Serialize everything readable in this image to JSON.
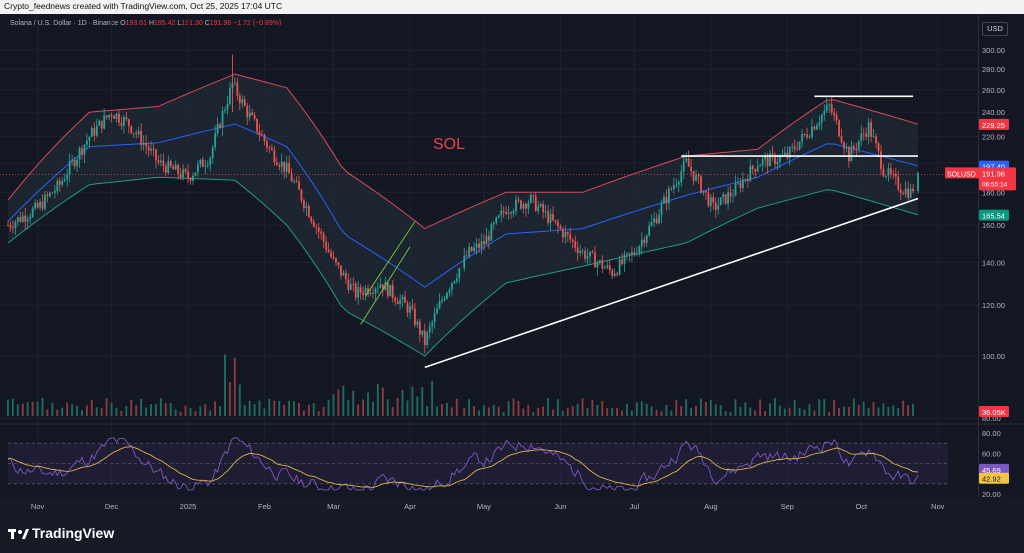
{
  "header": {
    "caption": "Crypto_feednews created with TradingView.com, Oct 25, 2025 17:04 UTC"
  },
  "legend": {
    "symbol": "Solana / U.S. Dollar · 1D · Binance",
    "o_label": "O",
    "o": "193.61",
    "h_label": "H",
    "h": "195.42",
    "l_label": "L",
    "l": "191.30",
    "c_label": "C",
    "c": "191.96",
    "change": "−1.72 (−0.89%)"
  },
  "currency_button": "USD",
  "annotation": "SOL",
  "logo_text": "TradingView",
  "colors": {
    "up": "#26a69a",
    "down": "#ef5350",
    "bb_upper": "#d84a5a",
    "bb_lower": "#1e9b8a",
    "bb_mid": "#2962ff",
    "rsi_line": "#7e57c2",
    "rsi_ma": "#d7b54a",
    "trendline": "#ffffff",
    "channel": "#66c13a",
    "background": "#131722"
  },
  "price_labels": [
    {
      "text": "SOLUSD",
      "color": "#f23645"
    },
    {
      "text": "191.96",
      "color": "#f23645"
    },
    {
      "text": "06:55:14",
      "color": "#f23645"
    }
  ],
  "badges": [
    {
      "text": "229.25",
      "color": "#f23645"
    },
    {
      "text": "197.40",
      "color": "#2962ff"
    },
    {
      "text": "165.54",
      "color": "#089981"
    },
    {
      "text": "36.05K",
      "color": "#f23645"
    },
    {
      "text": "45.69",
      "color": "#7e57c2"
    },
    {
      "text": "42.92",
      "color": "#f4c542"
    }
  ],
  "chart_data": [
    {
      "type": "line",
      "title": "Solana / U.S. Dollar · 1D · Binance",
      "price_scale": "log",
      "xlabel": "",
      "ylabel": "",
      "x_ticks": [
        "Nov",
        "Dec",
        "2025",
        "Feb",
        "Mar",
        "Apr",
        "May",
        "Jun",
        "Jul",
        "Aug",
        "Sep",
        "Oct",
        "Nov"
      ],
      "y_ticks": [
        80.0,
        100.0,
        120.0,
        140.0,
        160.0,
        180.0,
        200.0,
        220.0,
        240.0,
        260.0,
        280.0,
        300.0
      ],
      "ylim": [
        68,
        315
      ],
      "series": [
        {
          "name": "SOLUSD",
          "x": [
            "2024-10-20",
            "2024-11-01",
            "2024-11-10",
            "2024-11-22",
            "2024-12-01",
            "2024-12-08",
            "2024-12-20",
            "2025-01-01",
            "2025-01-10",
            "2025-01-19",
            "2025-01-25",
            "2025-02-03",
            "2025-02-10",
            "2025-02-20",
            "2025-03-01",
            "2025-03-10",
            "2025-03-20",
            "2025-04-01",
            "2025-04-07",
            "2025-04-15",
            "2025-04-25",
            "2025-05-01",
            "2025-05-10",
            "2025-05-20",
            "2025-05-30",
            "2025-06-10",
            "2025-06-22",
            "2025-07-01",
            "2025-07-10",
            "2025-07-22",
            "2025-08-02",
            "2025-08-10",
            "2025-08-20",
            "2025-09-01",
            "2025-09-10",
            "2025-09-18",
            "2025-09-26",
            "2025-10-04",
            "2025-10-10",
            "2025-10-17",
            "2025-10-21",
            "2025-10-25"
          ],
          "values": [
            160,
            170,
            185,
            220,
            240,
            230,
            200,
            190,
            205,
            265,
            240,
            210,
            195,
            165,
            140,
            125,
            130,
            118,
            105,
            125,
            145,
            150,
            170,
            175,
            160,
            145,
            135,
            145,
            165,
            200,
            170,
            180,
            200,
            205,
            225,
            245,
            205,
            228,
            195,
            183,
            180,
            191.96
          ]
        },
        {
          "name": "Upper band",
          "x": [
            "2024-10-20",
            "2024-11-22",
            "2024-12-20",
            "2025-01-20",
            "2025-02-10",
            "2025-03-05",
            "2025-04-07",
            "2025-05-10",
            "2025-06-10",
            "2025-07-22",
            "2025-08-20",
            "2025-09-18",
            "2025-10-25"
          ],
          "values": [
            175,
            240,
            245,
            275,
            262,
            195,
            158,
            180,
            180,
            205,
            210,
            252,
            229.25
          ]
        },
        {
          "name": "Lower band",
          "x": [
            "2024-10-20",
            "2024-11-22",
            "2024-12-20",
            "2025-01-20",
            "2025-02-10",
            "2025-03-05",
            "2025-04-07",
            "2025-05-10",
            "2025-06-10",
            "2025-07-22",
            "2025-08-20",
            "2025-09-18",
            "2025-10-25"
          ],
          "values": [
            150,
            185,
            190,
            188,
            160,
            118,
            100,
            130,
            138,
            150,
            170,
            182,
            165.54
          ]
        },
        {
          "name": "Basis",
          "x": [
            "2024-10-20",
            "2024-11-22",
            "2024-12-20",
            "2025-01-20",
            "2025-02-10",
            "2025-03-05",
            "2025-04-07",
            "2025-05-10",
            "2025-06-10",
            "2025-07-22",
            "2025-08-20",
            "2025-09-18",
            "2025-10-25"
          ],
          "values": [
            162,
            212,
            215,
            230,
            212,
            155,
            128,
            155,
            158,
            178,
            190,
            215,
            197.4
          ]
        }
      ],
      "trendlines": [
        {
          "label": "rising support",
          "from": [
            "2025-04-07",
            96
          ],
          "to": [
            "2025-10-24",
            176
          ]
        },
        {
          "label": "resistance",
          "from": [
            "2025-07-20",
            205
          ],
          "to": [
            "2025-10-24",
            205
          ]
        },
        {
          "label": "top",
          "from": [
            "2025-09-12",
            254
          ],
          "to": [
            "2025-10-22",
            254
          ]
        }
      ],
      "legend": "top-left",
      "grid": true
    },
    {
      "type": "bar",
      "title": "Volume",
      "last_value": "36.05K",
      "peak_month": "Jan"
    },
    {
      "type": "line",
      "title": "RSI",
      "y_ticks": [
        20.0,
        40.0,
        60.0,
        80.0
      ],
      "ylim": [
        20,
        85
      ],
      "bands": [
        30,
        70
      ],
      "series": [
        {
          "name": "RSI",
          "last": 45.69
        },
        {
          "name": "RSI MA",
          "last": 42.92
        }
      ]
    }
  ]
}
